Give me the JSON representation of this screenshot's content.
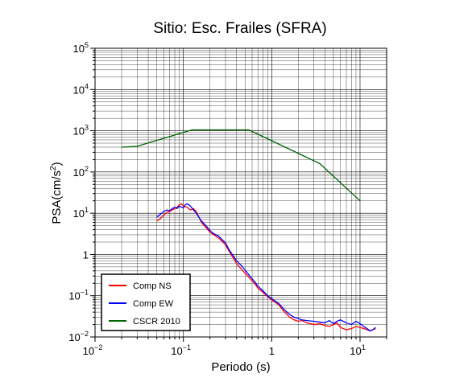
{
  "chart_data": {
    "type": "line",
    "title": "Sitio: Esc. Frailes (SFRA)",
    "xlabel": "Periodo (s)",
    "ylabel": {
      "base": "PSA(cm/s",
      "sup": "2",
      "close": ")"
    },
    "xscale": "log",
    "yscale": "log",
    "xlim": [
      0.01,
      20
    ],
    "ylim": [
      0.01,
      100000
    ],
    "grid": true,
    "legend_position": "bottom-left",
    "x_tick_labels": [
      {
        "base": "10",
        "exp": "−2"
      },
      {
        "base": "10",
        "exp": "−1"
      },
      {
        "base": "10",
        "exp": "0",
        "plain": "1"
      },
      {
        "base": "10",
        "exp": "1"
      }
    ],
    "y_tick_labels": [
      {
        "base": "10",
        "exp": "−2"
      },
      {
        "base": "10",
        "exp": "−1"
      },
      {
        "base": "10",
        "exp": "0",
        "plain": "1"
      },
      {
        "base": "10",
        "exp": "1"
      },
      {
        "base": "10",
        "exp": "2"
      },
      {
        "base": "10",
        "exp": "3"
      },
      {
        "base": "10",
        "exp": "4"
      },
      {
        "base": "10",
        "exp": "5"
      }
    ],
    "series": [
      {
        "name": "Comp NS",
        "color": "#ff0000",
        "x": [
          0.05,
          0.055,
          0.06,
          0.065,
          0.07,
          0.075,
          0.08,
          0.085,
          0.09,
          0.095,
          0.1,
          0.11,
          0.12,
          0.13,
          0.14,
          0.15,
          0.16,
          0.18,
          0.2,
          0.22,
          0.25,
          0.28,
          0.3,
          0.33,
          0.37,
          0.4,
          0.45,
          0.5,
          0.55,
          0.6,
          0.65,
          0.7,
          0.8,
          0.9,
          1.0,
          1.2,
          1.4,
          1.6,
          1.8,
          2.0,
          2.2,
          2.5,
          3.0,
          3.5,
          4.0,
          4.5,
          5.0,
          5.5,
          6.0,
          7.0,
          8.0,
          9.0,
          10.0,
          11.0,
          12.0,
          13.0,
          14.0,
          15.0
        ],
        "y": [
          6.5,
          7.5,
          9,
          10.5,
          11,
          12,
          13,
          14,
          16,
          17,
          15,
          14,
          12,
          13,
          11,
          8,
          6,
          4.5,
          3.5,
          3.0,
          2.5,
          2.0,
          1.7,
          1.2,
          0.8,
          0.6,
          0.45,
          0.35,
          0.28,
          0.23,
          0.19,
          0.15,
          0.12,
          0.095,
          0.08,
          0.06,
          0.04,
          0.03,
          0.026,
          0.024,
          0.025,
          0.022,
          0.02,
          0.021,
          0.019,
          0.018,
          0.02,
          0.022,
          0.017,
          0.015,
          0.016,
          0.018,
          0.017,
          0.016,
          0.015,
          0.014,
          0.015,
          0.016
        ]
      },
      {
        "name": "Comp EW",
        "color": "#0000ff",
        "x": [
          0.05,
          0.055,
          0.06,
          0.065,
          0.07,
          0.075,
          0.08,
          0.085,
          0.09,
          0.095,
          0.1,
          0.105,
          0.11,
          0.12,
          0.13,
          0.14,
          0.15,
          0.16,
          0.18,
          0.2,
          0.22,
          0.25,
          0.28,
          0.3,
          0.33,
          0.37,
          0.4,
          0.45,
          0.5,
          0.55,
          0.6,
          0.65,
          0.7,
          0.8,
          0.9,
          1.0,
          1.2,
          1.4,
          1.6,
          1.8,
          2.0,
          2.2,
          2.5,
          3.0,
          3.5,
          4.0,
          4.5,
          5.0,
          5.5,
          6.0,
          7.0,
          8.0,
          9.0,
          10.0,
          11.0,
          12.0,
          13.0,
          14.0,
          15.0
        ],
        "y": [
          8,
          9.5,
          11,
          12,
          11.5,
          13,
          14,
          13,
          15,
          14,
          13.5,
          16,
          17,
          15,
          12,
          10,
          8,
          6.5,
          5,
          3.8,
          3.2,
          2.8,
          2.2,
          1.9,
          1.3,
          0.9,
          0.7,
          0.55,
          0.42,
          0.32,
          0.26,
          0.21,
          0.17,
          0.13,
          0.1,
          0.085,
          0.065,
          0.045,
          0.035,
          0.03,
          0.028,
          0.026,
          0.025,
          0.024,
          0.023,
          0.022,
          0.025,
          0.021,
          0.024,
          0.026,
          0.022,
          0.02,
          0.024,
          0.021,
          0.018,
          0.016,
          0.014,
          0.015,
          0.017
        ]
      },
      {
        "name": "CSCR 2010",
        "color": "#006400",
        "x": [
          0.02,
          0.03,
          0.125,
          0.55,
          3.5,
          10.0
        ],
        "y": [
          400,
          420,
          1050,
          1050,
          160,
          20
        ]
      }
    ]
  }
}
